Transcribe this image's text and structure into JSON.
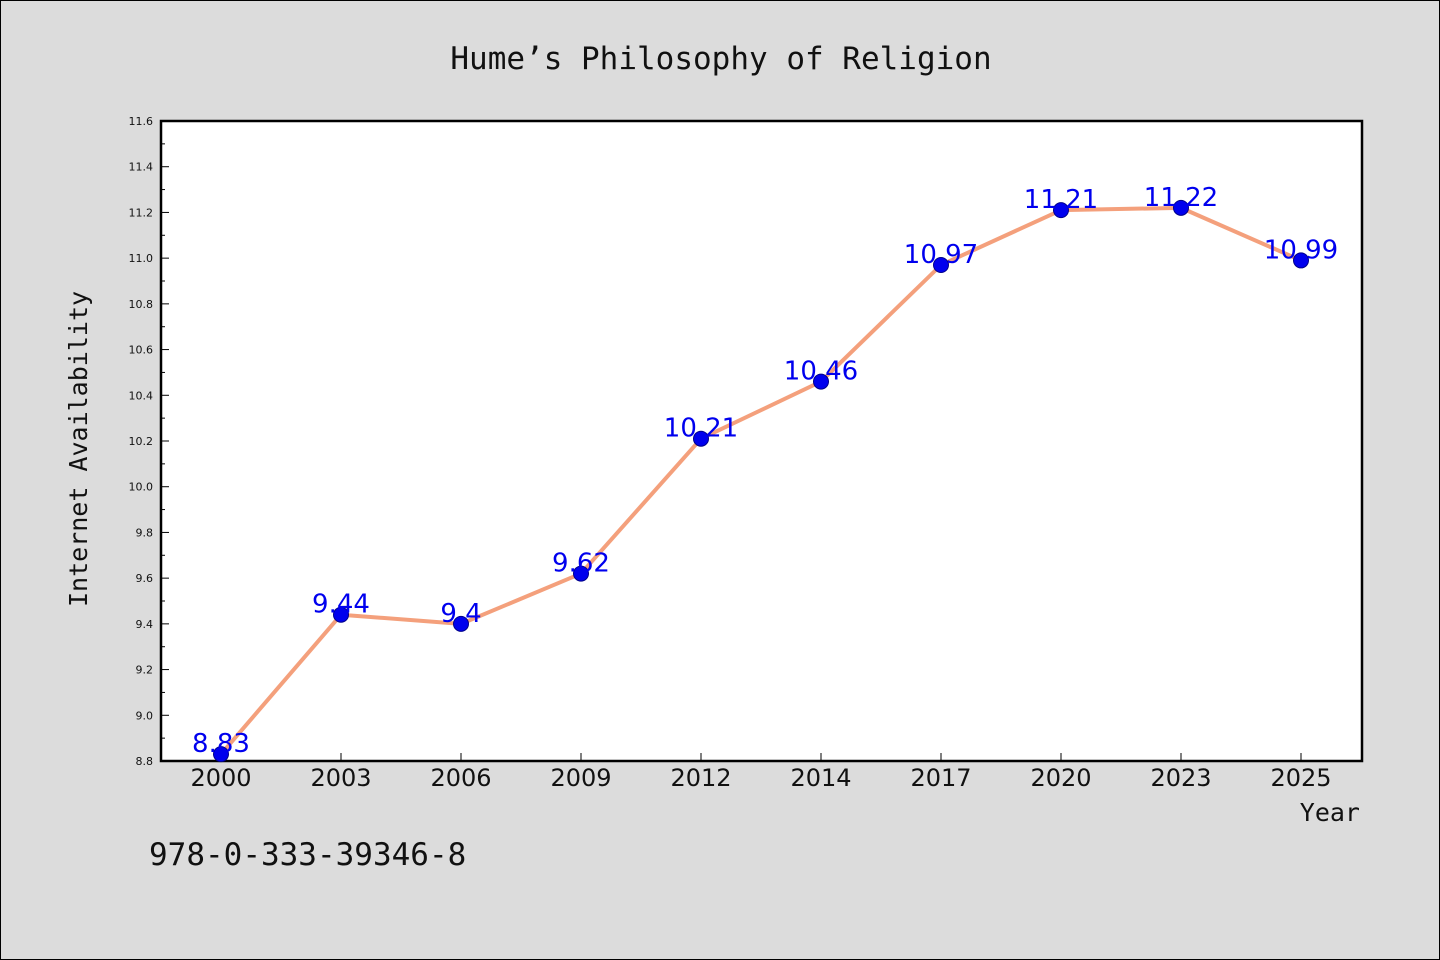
{
  "chart_data": {
    "type": "line",
    "title": "Hume’s Philosophy of Religion",
    "xlabel": "Year",
    "ylabel": "Internet Availability",
    "x": [
      "2000",
      "2003",
      "2006",
      "2009",
      "2012",
      "2014",
      "2017",
      "2020",
      "2023",
      "2025"
    ],
    "series": [
      {
        "values": [
          8.83,
          9.44,
          9.4,
          9.62,
          10.21,
          10.46,
          10.97,
          11.21,
          11.22,
          10.99
        ],
        "labels": [
          "8.83",
          "9.44",
          "9.4",
          "9.62",
          "10.21",
          "10.46",
          "10.97",
          "11.21",
          "11.22",
          "10.99"
        ]
      }
    ],
    "ylim": [
      8.8,
      11.6
    ],
    "yticks": [
      "8.8",
      "9.0",
      "9.2",
      "9.4",
      "9.6",
      "9.8",
      "10.0",
      "10.2",
      "10.4",
      "10.6",
      "10.8",
      "11.0",
      "11.2",
      "11.4",
      "11.6"
    ],
    "grid": false,
    "legend": "none",
    "colors": {
      "line": "#f4a07c",
      "marker": "#0000ee",
      "marker_edge": "#00008b",
      "data_label": "#0000ee",
      "plot_bg": "#ffffff",
      "figure_bg": "#dcdcdc"
    }
  },
  "footer": {
    "isbn": "978-0-333-39346-8"
  }
}
